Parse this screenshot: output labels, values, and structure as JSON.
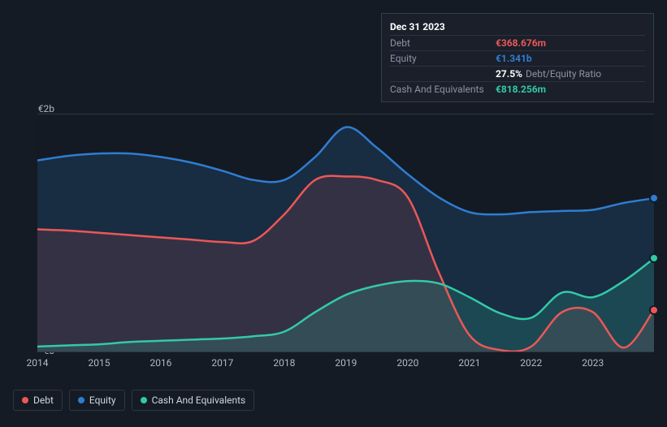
{
  "tooltip": {
    "date": "Dec 31 2023",
    "rows": [
      {
        "label": "Debt",
        "value": "€368.676m",
        "color": "#eb5857"
      },
      {
        "label": "Equity",
        "value": "€1.341b",
        "color": "#2f7dd1"
      },
      {
        "label": "",
        "value": "27.5%",
        "suffix": "Debt/Equity Ratio",
        "color": "#ffffff"
      },
      {
        "label": "Cash And Equivalents",
        "value": "€818.256m",
        "color": "#33c9a7"
      }
    ]
  },
  "chart": {
    "type": "area",
    "background_color": "#151b24",
    "grid_color": "#2d3642",
    "ylim": [
      0,
      2.07
    ],
    "ylabels": [
      {
        "v": 2.0,
        "text": "€2b"
      },
      {
        "v": 0.0,
        "text": "€0"
      }
    ],
    "x_categories": [
      "2014",
      "2015",
      "2016",
      "2017",
      "2018",
      "2019",
      "2020",
      "2021",
      "2022",
      "2023"
    ],
    "x_points": [
      2014,
      2014.5,
      2015,
      2015.5,
      2016,
      2016.5,
      2017,
      2017.5,
      2018,
      2018.5,
      2019,
      2019.5,
      2020,
      2020.5,
      2021,
      2021.5,
      2022,
      2022.5,
      2023,
      2023.5,
      2023.99
    ],
    "series": [
      {
        "name": "Equity",
        "color": "#2f7dd1",
        "fill_opacity": 0.18,
        "values": [
          1.67,
          1.71,
          1.73,
          1.73,
          1.7,
          1.65,
          1.58,
          1.5,
          1.5,
          1.7,
          1.96,
          1.78,
          1.55,
          1.35,
          1.22,
          1.2,
          1.22,
          1.23,
          1.24,
          1.3,
          1.341
        ]
      },
      {
        "name": "Debt",
        "color": "#eb5857",
        "fill_opacity": 0.14,
        "values": [
          1.07,
          1.06,
          1.04,
          1.02,
          1.0,
          0.98,
          0.96,
          0.97,
          1.2,
          1.5,
          1.53,
          1.5,
          1.35,
          0.7,
          0.15,
          0.02,
          0.05,
          0.35,
          0.35,
          0.04,
          0.369
        ]
      },
      {
        "name": "Cash And Equivalents",
        "color": "#33c9a7",
        "fill_opacity": 0.18,
        "values": [
          0.05,
          0.06,
          0.07,
          0.09,
          0.1,
          0.11,
          0.12,
          0.14,
          0.18,
          0.35,
          0.5,
          0.58,
          0.62,
          0.6,
          0.48,
          0.34,
          0.3,
          0.52,
          0.48,
          0.62,
          0.818
        ]
      }
    ],
    "legend": [
      {
        "label": "Debt",
        "color": "#eb5857"
      },
      {
        "label": "Equity",
        "color": "#2f7dd1"
      },
      {
        "label": "Cash And Equivalents",
        "color": "#33c9a7"
      }
    ],
    "line_width": 2.5
  }
}
